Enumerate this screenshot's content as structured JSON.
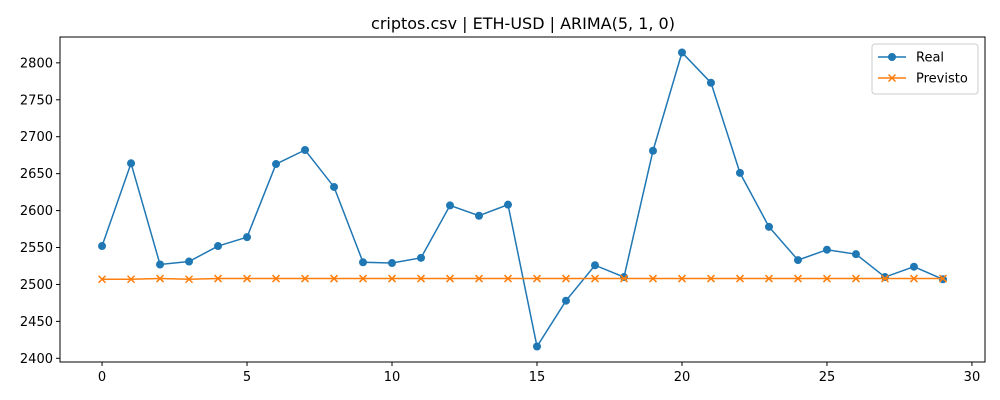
{
  "chart_data": {
    "type": "line",
    "title": "criptos.csv | ETH-USD | ARIMA(5, 1, 0)",
    "xlabel": "",
    "ylabel": "",
    "xlim": [
      -1.45,
      30.45
    ],
    "ylim": [
      2395,
      2835
    ],
    "xticks": [
      0,
      5,
      10,
      15,
      20,
      25,
      30
    ],
    "yticks": [
      2400,
      2450,
      2500,
      2550,
      2600,
      2650,
      2700,
      2750,
      2800
    ],
    "grid": false,
    "legend_position": "top-right",
    "x": [
      0,
      1,
      2,
      3,
      4,
      5,
      6,
      7,
      8,
      9,
      10,
      11,
      12,
      13,
      14,
      15,
      16,
      17,
      18,
      19,
      20,
      21,
      22,
      23,
      24,
      25,
      26,
      27,
      28,
      29
    ],
    "series": [
      {
        "name": "Real",
        "color": "#1f77b4",
        "marker": "circle",
        "values": [
          2552,
          2664,
          2527,
          2531,
          2552,
          2564,
          2663,
          2682,
          2632,
          2530,
          2529,
          2536,
          2607,
          2593,
          2608,
          2416,
          2478,
          2526,
          2510,
          2681,
          2814,
          2773,
          2651,
          2578,
          2533,
          2547,
          2541,
          2510,
          2524,
          2507
        ]
      },
      {
        "name": "Previsto",
        "color": "#ff7f0e",
        "marker": "x",
        "values": [
          2507,
          2507,
          2508,
          2507,
          2508,
          2508,
          2508,
          2508,
          2508,
          2508,
          2508,
          2508,
          2508,
          2508,
          2508,
          2508,
          2508,
          2508,
          2508,
          2508,
          2508,
          2508,
          2508,
          2508,
          2508,
          2508,
          2508,
          2508,
          2508,
          2508
        ]
      }
    ]
  }
}
